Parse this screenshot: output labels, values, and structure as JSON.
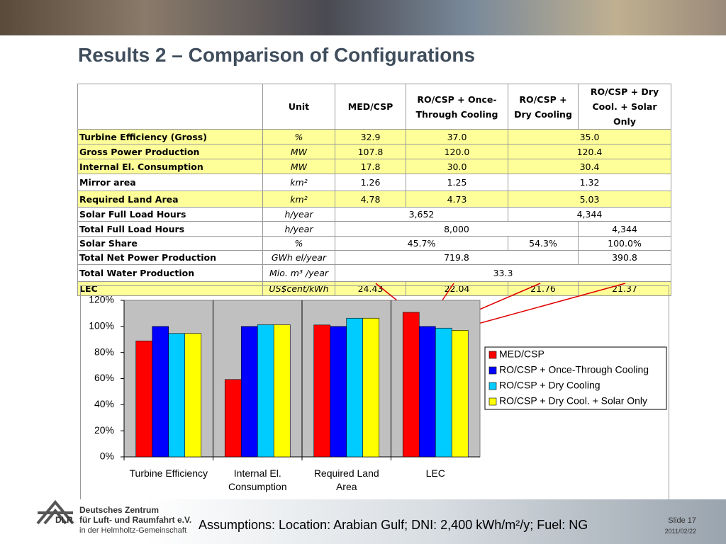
{
  "header": {
    "title": "Results 2 – Comparison of Configurations"
  },
  "table": {
    "columns": [
      "Unit",
      "MED/CSP",
      "RO/CSP + Once-Through Cooling",
      "RO/CSP + Dry Cooling",
      "RO/CSP + Dry Cool. + Solar Only"
    ],
    "rows": [
      {
        "label": "Turbine Efficiency (Gross)",
        "unit": "%",
        "cells": [
          "32.9",
          "37.0",
          "35.0"
        ],
        "highlight": true
      },
      {
        "label": "Gross Power Production",
        "unit": "MW",
        "cells": [
          "107.8",
          "120.0",
          "120.4"
        ],
        "highlight": true
      },
      {
        "label": "Internal El. Consumption",
        "unit": "MW",
        "cells": [
          "17.8",
          "30.0",
          "30.4"
        ],
        "highlight": true
      },
      {
        "label": "Mirror area",
        "unit": "km²",
        "cells": [
          "1.26",
          "1.25",
          "1.32"
        ],
        "highlight": false
      },
      {
        "label": "Required Land Area",
        "unit": "km²",
        "cells": [
          "4.78",
          "4.73",
          "5.03"
        ],
        "highlight": true
      },
      {
        "label": "Solar Full Load Hours",
        "unit": "h/year",
        "cells": [
          "3,652",
          "4,344"
        ],
        "highlight": false
      },
      {
        "label": "Total Full Load Hours",
        "unit": "h/year",
        "cells": [
          "8,000",
          "4,344"
        ],
        "highlight": false
      },
      {
        "label": "Solar Share",
        "unit": "%",
        "cells": [
          "45.7%",
          "54.3%",
          "100.0%"
        ],
        "highlight": false
      },
      {
        "label": "Total Net Power Production",
        "unit": "GWh el/year",
        "cells": [
          "719.8",
          "390.8"
        ],
        "highlight": false
      },
      {
        "label": "Total Water Production",
        "unit": "Mio. m³ /year",
        "cells": [
          "33.3"
        ],
        "highlight": false
      },
      {
        "label": "LEC",
        "unit": "US$cent/kWh",
        "cells": [
          "24.43",
          "22.04",
          "21.76",
          "21.37"
        ],
        "highlight": true
      }
    ]
  },
  "chart_data": {
    "type": "bar",
    "categories": [
      "Turbine Efficiency",
      "Internal El. Consumption",
      "Required Land Area",
      "LEC"
    ],
    "series": [
      {
        "name": "MED/CSP",
        "color": "#ff0000",
        "values": [
          88.9,
          59.3,
          101.1,
          110.8
        ]
      },
      {
        "name": "RO/CSP + Once-Through Cooling",
        "color": "#0000ff",
        "values": [
          100,
          100,
          100,
          100
        ]
      },
      {
        "name": "RO/CSP + Dry Cooling",
        "color": "#00ccff",
        "values": [
          94.6,
          101.3,
          106.3,
          98.7
        ]
      },
      {
        "name": "RO/CSP + Dry Cool. + Solar Only",
        "color": "#ffff00",
        "values": [
          94.6,
          101.3,
          106.3,
          97.0
        ]
      }
    ],
    "ylim": [
      0,
      120
    ],
    "yticks": [
      {
        "value": 0,
        "label": "0%"
      },
      {
        "value": 20,
        "label": "20%"
      },
      {
        "value": 40,
        "label": "40%"
      },
      {
        "value": 60,
        "label": "60%"
      },
      {
        "value": 80,
        "label": "80%"
      },
      {
        "value": 100,
        "label": "100%"
      },
      {
        "value": 120,
        "label": "120%"
      }
    ],
    "grid": false,
    "legend": "right"
  },
  "footer": {
    "note": "Assumptions: Location: Arabian Gulf; DNI: 2,400 kWh/m²/y; Fuel: NG",
    "slide": "Slide 17",
    "date": "2011/02/22",
    "logo": [
      "Deutsches Zentrum",
      "für Luft- und Raumfahrt e.V.",
      "in der Helmholtz-Gemeinschaft"
    ],
    "logo_mark": "DLR"
  }
}
